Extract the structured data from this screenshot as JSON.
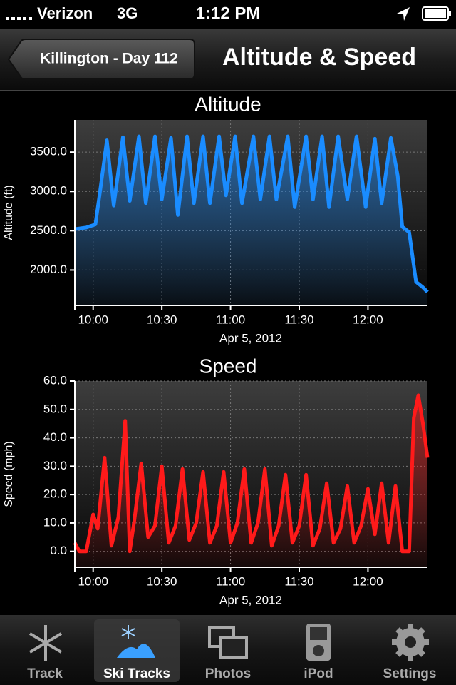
{
  "status_bar": {
    "carrier": "Verizon",
    "network": "3G",
    "time": "1:12 PM"
  },
  "nav_bar": {
    "back_button": "Killington - Day 112",
    "title": "Altitude & Speed"
  },
  "chart_data": [
    {
      "type": "area",
      "title": "Altitude",
      "ylabel": "Altitude (ft)",
      "xlabel": "Apr 5, 2012",
      "x": [
        "09:52",
        "09:57",
        "10:01",
        "10:03",
        "10:06",
        "10:09",
        "10:13",
        "10:16",
        "10:20",
        "10:23",
        "10:27",
        "10:30",
        "10:34",
        "10:37",
        "10:41",
        "10:44",
        "10:48",
        "10:51",
        "10:55",
        "10:58",
        "11:02",
        "11:05",
        "11:10",
        "11:13",
        "11:17",
        "11:20",
        "11:25",
        "11:28",
        "11:33",
        "11:36",
        "11:40",
        "11:43",
        "11:47",
        "11:51",
        "11:55",
        "11:59",
        "12:03",
        "12:06",
        "12:10",
        "12:13",
        "12:15",
        "12:18",
        "12:21",
        "12:24",
        "12:26"
      ],
      "series": [
        {
          "color": "#1a8cff",
          "values": [
            2520,
            2540,
            2580,
            3000,
            3650,
            2820,
            3690,
            2880,
            3700,
            2850,
            3700,
            2900,
            3680,
            2700,
            3700,
            2850,
            3700,
            2850,
            3700,
            2950,
            3700,
            2850,
            3700,
            2900,
            3700,
            2900,
            3700,
            2800,
            3700,
            2900,
            3700,
            2800,
            3700,
            2900,
            3700,
            2800,
            3670,
            2850,
            3680,
            3200,
            2550,
            2480,
            1850,
            1780,
            1720
          ]
        }
      ],
      "xlim": [
        "09:52",
        "12:26"
      ],
      "xticks": [
        "10:00",
        "10:30",
        "11:00",
        "11:30",
        "12:00"
      ],
      "ylim": [
        1550,
        3910
      ],
      "yticks": [
        {
          "value": 2000,
          "label": "2000.0"
        },
        {
          "value": 2500,
          "label": "2500.0"
        },
        {
          "value": 3000,
          "label": "3000.0"
        },
        {
          "value": 3500,
          "label": "3500.0"
        }
      ],
      "grid": true
    },
    {
      "type": "area",
      "title": "Speed",
      "ylabel": "Speed (mph)",
      "xlabel": "Apr 5, 2012",
      "x": [
        "09:52",
        "09:54",
        "09:57",
        "10:00",
        "10:02",
        "10:05",
        "10:08",
        "10:11",
        "10:14",
        "10:16",
        "10:18",
        "10:21",
        "10:24",
        "10:27",
        "10:30",
        "10:33",
        "10:36",
        "10:39",
        "10:42",
        "10:45",
        "10:48",
        "10:51",
        "10:54",
        "10:57",
        "11:00",
        "11:03",
        "11:06",
        "11:09",
        "11:12",
        "11:15",
        "11:18",
        "11:21",
        "11:24",
        "11:27",
        "11:30",
        "11:33",
        "11:36",
        "11:39",
        "11:42",
        "11:45",
        "11:48",
        "11:51",
        "11:54",
        "11:57",
        "12:00",
        "12:03",
        "12:06",
        "12:09",
        "12:12",
        "12:15",
        "12:18",
        "12:20",
        "12:22",
        "12:24",
        "12:26"
      ],
      "series": [
        {
          "color": "#ff1a1a",
          "values": [
            3,
            0,
            0,
            13,
            8,
            33,
            2,
            12,
            46,
            0,
            11,
            31,
            5,
            9,
            30,
            3,
            9,
            29,
            4,
            10,
            28,
            3,
            9,
            28,
            3,
            10,
            29,
            3,
            10,
            29,
            2,
            9,
            27,
            3,
            9,
            27,
            2,
            8,
            24,
            3,
            8,
            23,
            3,
            9,
            22,
            6,
            24,
            3,
            23,
            0,
            0,
            47,
            55,
            45,
            33
          ]
        }
      ],
      "xlim": [
        "09:52",
        "12:26"
      ],
      "xticks": [
        "10:00",
        "10:30",
        "11:00",
        "11:30",
        "12:00"
      ],
      "ylim": [
        -5.6,
        60
      ],
      "yticks": [
        {
          "value": 0,
          "label": "0.0"
        },
        {
          "value": 10,
          "label": "10.0"
        },
        {
          "value": 20,
          "label": "20.0"
        },
        {
          "value": 30,
          "label": "30.0"
        },
        {
          "value": 40,
          "label": "40.0"
        },
        {
          "value": 50,
          "label": "50.0"
        },
        {
          "value": 60,
          "label": "60.0"
        }
      ],
      "grid": true
    }
  ],
  "tab_bar": {
    "items": [
      "Track",
      "Ski Tracks",
      "Photos",
      "iPod",
      "Settings"
    ],
    "selected": 1
  }
}
